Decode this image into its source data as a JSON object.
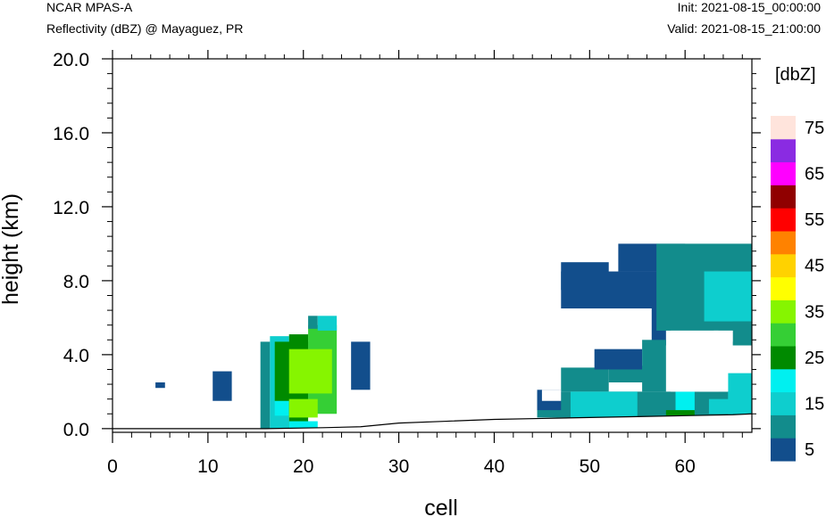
{
  "header": {
    "title_left": "NCAR MPAS-A",
    "subtitle_left": "Reflectivity (dBZ) @ Mayaguez, PR",
    "title_right": "Init: 2021-08-15_00:00:00",
    "subtitle_right": "Valid: 2021-08-15_21:00:00"
  },
  "chart_data": {
    "type": "heatmap",
    "title": "Reflectivity (dBZ) @ Mayaguez, PR",
    "xlabel": "cell",
    "ylabel": "height (km)",
    "xlim": [
      0,
      67
    ],
    "ylim": [
      -0.2,
      20.0
    ],
    "x_ticks": [
      0,
      10,
      20,
      30,
      40,
      50,
      60
    ],
    "x_tick_labels": [
      "0",
      "10",
      "20",
      "30",
      "40",
      "50",
      "60"
    ],
    "y_ticks": [
      0.0,
      4.0,
      8.0,
      12.0,
      16.0,
      20.0
    ],
    "y_tick_labels": [
      "0.0",
      "4.0",
      "8.0",
      "12.0",
      "16.0",
      "20.0"
    ],
    "colorbar": {
      "unit_label": "[dbZ]",
      "levels": [
        5,
        10,
        15,
        20,
        25,
        30,
        35,
        40,
        45,
        50,
        55,
        60,
        65,
        70,
        75
      ],
      "tick_labels": [
        "5",
        "15",
        "25",
        "35",
        "45",
        "55",
        "65",
        "75"
      ],
      "colors": [
        "#124e8c",
        "#128c8c",
        "#0ecece",
        "#00f0f0",
        "#008a00",
        "#35cf35",
        "#86f500",
        "#ffff00",
        "#ffd200",
        "#ff8200",
        "#ff0000",
        "#900000",
        "#ff00ff",
        "#8a2be2",
        "#ffe4dc"
      ]
    },
    "terrain_profile": {
      "x": [
        0,
        16,
        22,
        26,
        30,
        35,
        40,
        45,
        50,
        55,
        60,
        65,
        67
      ],
      "height": [
        0.0,
        0.0,
        0.05,
        0.1,
        0.3,
        0.4,
        0.5,
        0.55,
        0.6,
        0.65,
        0.7,
        0.75,
        0.8
      ]
    },
    "cells": [
      {
        "x0": 4.5,
        "x1": 5.5,
        "z0": 2.2,
        "z1": 2.5,
        "dbz": 5
      },
      {
        "x0": 10.5,
        "x1": 12.5,
        "z0": 1.5,
        "z1": 3.1,
        "dbz": 5
      },
      {
        "x0": 25.0,
        "x1": 27.0,
        "z0": 2.1,
        "z1": 4.7,
        "dbz": 5
      },
      {
        "x0": 15.5,
        "x1": 16.5,
        "z0": 0.0,
        "z1": 4.7,
        "dbz": 10
      },
      {
        "x0": 16.5,
        "x1": 18.5,
        "z0": 0.0,
        "z1": 5.0,
        "dbz": 15
      },
      {
        "x0": 17.0,
        "x1": 18.5,
        "z0": 0.7,
        "z1": 4.7,
        "dbz": 20
      },
      {
        "x0": 18.5,
        "x1": 20.5,
        "z0": 0.0,
        "z1": 5.1,
        "dbz": 25
      },
      {
        "x0": 20.5,
        "x1": 23.5,
        "z0": 0.8,
        "z1": 5.6,
        "dbz": 30
      },
      {
        "x0": 20.5,
        "x1": 21.5,
        "z0": 5.4,
        "z1": 6.1,
        "dbz": 10
      },
      {
        "x0": 21.5,
        "x1": 23.5,
        "z0": 5.3,
        "z1": 6.1,
        "dbz": 15
      },
      {
        "x0": 17.0,
        "x1": 20.5,
        "z0": 1.5,
        "z1": 4.7,
        "dbz": 25
      },
      {
        "x0": 18.5,
        "x1": 23.0,
        "z0": 1.9,
        "z1": 4.3,
        "dbz": 35
      },
      {
        "x0": 18.5,
        "x1": 21.5,
        "z0": 0.6,
        "z1": 1.6,
        "dbz": 35
      },
      {
        "x0": 18.5,
        "x1": 21.5,
        "z0": 0.0,
        "z1": 0.4,
        "dbz": 20
      },
      {
        "x0": 44.5,
        "x1": 67.0,
        "z0": 0.6,
        "z1": 2.0,
        "dbz": 10
      },
      {
        "x0": 44.5,
        "x1": 47.0,
        "z0": 1.0,
        "z1": 2.1,
        "dbz": 5
      },
      {
        "x0": 47.0,
        "x1": 52.0,
        "z0": 2.0,
        "z1": 3.3,
        "dbz": 10
      },
      {
        "x0": 52.0,
        "x1": 56.0,
        "z0": 2.5,
        "z1": 3.4,
        "dbz": 10
      },
      {
        "x0": 50.5,
        "x1": 55.5,
        "z0": 3.2,
        "z1": 4.3,
        "dbz": 5
      },
      {
        "x0": 47.0,
        "x1": 60.0,
        "z0": 6.5,
        "z1": 8.5,
        "dbz": 5
      },
      {
        "x0": 53.0,
        "x1": 60.0,
        "z0": 8.5,
        "z1": 10.0,
        "dbz": 5
      },
      {
        "x0": 47.0,
        "x1": 52.0,
        "z0": 7.5,
        "z1": 9.0,
        "dbz": 5
      },
      {
        "x0": 56.5,
        "x1": 58.0,
        "z0": 4.5,
        "z1": 7.0,
        "dbz": 5
      },
      {
        "x0": 57.0,
        "x1": 67.0,
        "z0": 5.3,
        "z1": 10.0,
        "dbz": 10
      },
      {
        "x0": 62.0,
        "x1": 67.0,
        "z0": 5.8,
        "z1": 8.5,
        "dbz": 15
      },
      {
        "x0": 65.0,
        "x1": 67.0,
        "z0": 4.5,
        "z1": 5.8,
        "dbz": 10
      },
      {
        "x0": 64.5,
        "x1": 67.0,
        "z0": 0.8,
        "z1": 3.0,
        "dbz": 15
      },
      {
        "x0": 55.5,
        "x1": 58.0,
        "z0": 2.0,
        "z1": 4.8,
        "dbz": 10
      },
      {
        "x0": 48.0,
        "x1": 55.0,
        "z0": 0.6,
        "z1": 2.0,
        "dbz": 15
      },
      {
        "x0": 59.0,
        "x1": 61.0,
        "z0": 0.8,
        "z1": 2.0,
        "dbz": 20
      },
      {
        "x0": 58.0,
        "x1": 61.0,
        "z0": 0.6,
        "z1": 1.0,
        "dbz": 25
      },
      {
        "x0": 62.5,
        "x1": 65.0,
        "z0": 0.8,
        "z1": 1.6,
        "dbz": 15
      }
    ],
    "clear_regions": [
      {
        "x0": 58.5,
        "x1": 63.5,
        "z0": 2.0,
        "z1": 5.3
      },
      {
        "x0": 61.5,
        "x1": 64.5,
        "z0": 2.0,
        "z1": 4.8
      },
      {
        "x0": 63.0,
        "x1": 65.0,
        "z0": 4.7,
        "z1": 5.3
      },
      {
        "x0": 45.0,
        "x1": 47.0,
        "z0": 1.5,
        "z1": 2.1
      },
      {
        "x0": 0.0,
        "x1": 4.0,
        "z0": 10.0,
        "z1": 20.0
      }
    ],
    "grid": false,
    "legend": "right"
  }
}
